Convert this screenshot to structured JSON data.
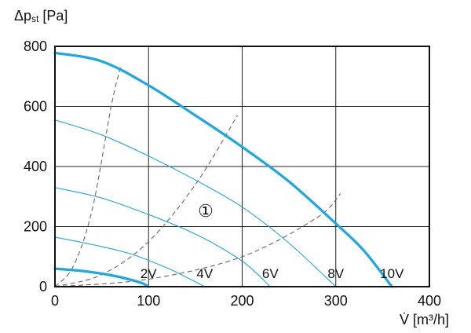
{
  "chart_data": {
    "type": "line",
    "ylabel_main": "Δp",
    "ylabel_sub": "st",
    "ylabel_unit": " [Pa]",
    "xlabel": "V̇ [m³/h]",
    "xlim": [
      0,
      400
    ],
    "ylim": [
      0,
      800
    ],
    "xticks": [
      0,
      100,
      200,
      300,
      400
    ],
    "yticks": [
      0,
      200,
      400,
      600,
      800
    ],
    "grid": true,
    "annotation": "①",
    "colors": {
      "curve": "#1aa7e6",
      "system": "#666666",
      "grid": "#222222"
    },
    "series": [
      {
        "name": "2V",
        "thick": true,
        "x": [
          0,
          30,
          60,
          90,
          100
        ],
        "y": [
          60,
          52,
          38,
          15,
          0
        ]
      },
      {
        "name": "4V",
        "thick": false,
        "x": [
          0,
          40,
          80,
          120,
          140,
          160
        ],
        "y": [
          165,
          140,
          110,
          62,
          32,
          0
        ]
      },
      {
        "name": "6V",
        "thick": false,
        "x": [
          0,
          50,
          100,
          150,
          200,
          230
        ],
        "y": [
          330,
          295,
          240,
          175,
          85,
          0
        ]
      },
      {
        "name": "8V",
        "thick": false,
        "x": [
          0,
          50,
          100,
          150,
          200,
          250,
          300
        ],
        "y": [
          555,
          505,
          435,
          355,
          265,
          145,
          0
        ]
      },
      {
        "name": "10V",
        "thick": true,
        "x": [
          0,
          50,
          100,
          150,
          200,
          250,
          300,
          330,
          360
        ],
        "y": [
          778,
          750,
          670,
          570,
          465,
          350,
          210,
          120,
          0
        ]
      }
    ],
    "system_curves": [
      {
        "x": [
          0,
          20,
          40,
          60,
          70
        ],
        "y": [
          0,
          70,
          260,
          600,
          730
        ]
      },
      {
        "x": [
          0,
          50,
          100,
          150,
          195
        ],
        "y": [
          0,
          40,
          150,
          340,
          570
        ]
      },
      {
        "x": [
          0,
          100,
          200,
          280,
          305
        ],
        "y": [
          0,
          25,
          100,
          230,
          310
        ]
      }
    ]
  }
}
